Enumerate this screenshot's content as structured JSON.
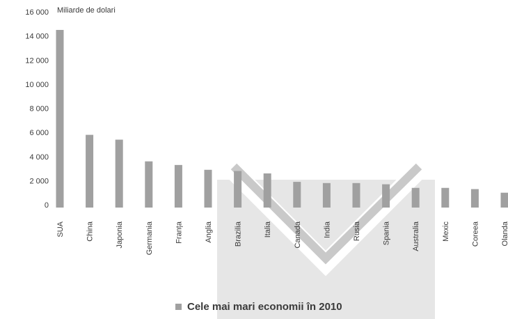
{
  "chart_data": {
    "type": "bar",
    "unit_label": "Miliarde de dolari",
    "categories": [
      "SUA",
      "China",
      "Japonia",
      "Germania",
      "Franța",
      "Anglia",
      "Brazilia",
      "Italia",
      "Canada",
      "India",
      "Rusia",
      "Spania",
      "Australia",
      "Mexic",
      "Coreea",
      "Olanda"
    ],
    "values": [
      14500,
      5800,
      5400,
      3600,
      3300,
      2900,
      2800,
      2600,
      1900,
      1800,
      1800,
      1700,
      1400,
      1400,
      1300,
      1000
    ],
    "yticks": [
      "0",
      "2 000",
      "4 000",
      "6 000",
      "8 000",
      "10 000",
      "12 000",
      "14 000",
      "16 000"
    ],
    "ylim": [
      0,
      16000
    ],
    "legend": "Cele mai mari economii în 2010",
    "grid": false,
    "colors": {
      "bar": "#a0a0a0",
      "watermark": "#e6e6e6",
      "text": "#3a3a3a"
    }
  }
}
